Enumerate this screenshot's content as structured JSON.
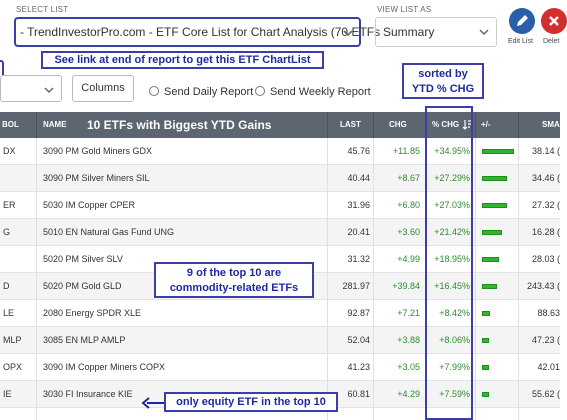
{
  "top": {
    "select_list_label": "SELECT LIST",
    "select_list_value": "- TrendInvestorPro.com - ETF Core List for Chart Analysis (70 ETFs",
    "view_list_label": "VIEW LIST AS",
    "view_list_value": "Summary",
    "edit_list_label": "Edit List",
    "delete_label": "Delet",
    "edit_color": "#2a5ea8",
    "delete_color": "#d32f2f"
  },
  "callouts": {
    "link_note": "See link at end of report to get this ETF ChartList",
    "sorted_line1": "sorted by",
    "sorted_line2": "YTD % CHG",
    "commodity_line1": "9 of the top 10 are",
    "commodity_line2": "commodity-related ETFs",
    "equity_note": "only equity ETF in the top 10"
  },
  "controls": {
    "columns_label": "Columns",
    "send_daily": "Send Daily Report",
    "send_weekly": "Send Weekly Report"
  },
  "table": {
    "headers": {
      "symbol": "BOL",
      "name": "NAME",
      "title": "10 ETFs with Biggest YTD Gains",
      "last": "LAST",
      "chg": "CHG",
      "pct_chg": "% CHG",
      "plus_minus": "+/-",
      "sma": "SMA"
    },
    "rows": [
      {
        "sym": "DX",
        "name": "3090 PM Gold Miners GDX",
        "last": "45.76",
        "chg": "+11.85",
        "pct": "+34.95%",
        "pct_value": 34.95,
        "sma": "38.14 ("
      },
      {
        "sym": "",
        "name": "3090 PM Silver Miners SIL",
        "last": "40.44",
        "chg": "+8.67",
        "pct": "+27.29%",
        "pct_value": 27.29,
        "sma": "34.46 ("
      },
      {
        "sym": "ER",
        "name": "5030 IM Copper CPER",
        "last": "31.96",
        "chg": "+6.80",
        "pct": "+27.03%",
        "pct_value": 27.03,
        "sma": "27.32 ("
      },
      {
        "sym": "G",
        "name": "5010 EN Natural Gas Fund UNG",
        "last": "20.41",
        "chg": "+3.60",
        "pct": "+21.42%",
        "pct_value": 21.42,
        "sma": "16.28 ("
      },
      {
        "sym": "",
        "name": "5020 PM Silver SLV",
        "last": "31.32",
        "chg": "+4.99",
        "pct": "+18.95%",
        "pct_value": 18.95,
        "sma": "28.03 ("
      },
      {
        "sym": "D",
        "name": "5020 PM Gold GLD",
        "last": "281.97",
        "chg": "+39.84",
        "pct": "+16.45%",
        "pct_value": 16.45,
        "sma": "243.43 ("
      },
      {
        "sym": "LE",
        "name": "2080 Energy SPDR XLE",
        "last": "92.87",
        "chg": "+7.21",
        "pct": "+8.42%",
        "pct_value": 8.42,
        "sma": "88.63"
      },
      {
        "sym": "MLP",
        "name": "3085 EN MLP AMLP",
        "last": "52.04",
        "chg": "+3.88",
        "pct": "+8.06%",
        "pct_value": 8.06,
        "sma": "47.23 ("
      },
      {
        "sym": "OPX",
        "name": "3090 IM Copper Miners COPX",
        "last": "41.23",
        "chg": "+3.05",
        "pct": "+7.99%",
        "pct_value": 7.99,
        "sma": "42.01"
      },
      {
        "sym": "IE",
        "name": "3030 FI Insurance KIE",
        "last": "60.81",
        "chg": "+4.29",
        "pct": "+7.59%",
        "pct_value": 7.59,
        "sma": "55.62 ("
      }
    ]
  },
  "colors": {
    "header_bg": "#5c6570",
    "callout_border": "#3d3fa8",
    "callout_text": "#1d2a9e",
    "gain_green": "#2e8b2e",
    "bar_green": "#2fb52f"
  }
}
